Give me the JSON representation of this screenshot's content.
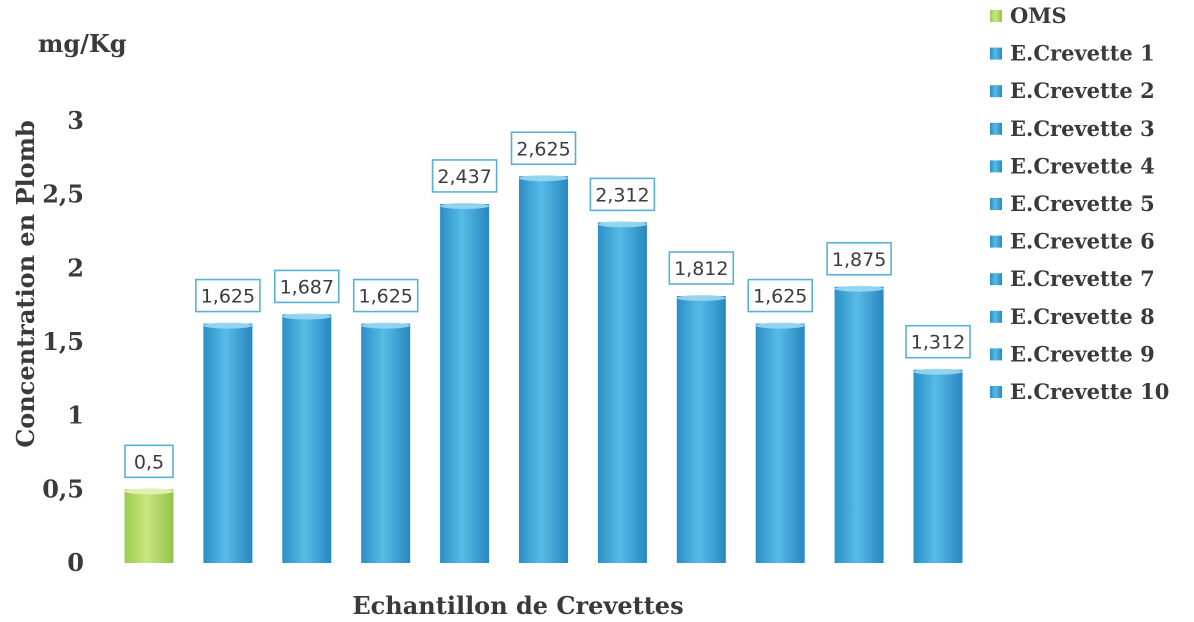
{
  "chart_data": {
    "type": "bar",
    "unit_label": "mg/Kg",
    "xlabel": "Echantillon de Crevettes",
    "ylabel": "Concentration en Plomb",
    "ylim": [
      0,
      3
    ],
    "yticks": [
      "0",
      "0,5",
      "1",
      "1,5",
      "2",
      "2,5",
      "3"
    ],
    "ytick_values": [
      0,
      0.5,
      1,
      1.5,
      2,
      2.5,
      3
    ],
    "grid": false,
    "legend_position": "right",
    "series": [
      {
        "name": "OMS",
        "value": 0.5,
        "label": "0,5",
        "color": "#b6dc6a"
      },
      {
        "name": "E.Crevette 1",
        "value": 1.625,
        "label": "1,625",
        "color": "#3fa6d8"
      },
      {
        "name": "E.Crevette 2",
        "value": 1.687,
        "label": "1,687",
        "color": "#3fa6d8"
      },
      {
        "name": "E.Crevette 3",
        "value": 1.625,
        "label": "1,625",
        "color": "#3fa6d8"
      },
      {
        "name": "E.Crevette 4",
        "value": 2.437,
        "label": "2,437",
        "color": "#3fa6d8"
      },
      {
        "name": "E.Crevette 5",
        "value": 2.625,
        "label": "2,625",
        "color": "#3fa6d8"
      },
      {
        "name": "E.Crevette 6",
        "value": 2.312,
        "label": "2,312",
        "color": "#3fa6d8"
      },
      {
        "name": "E.Crevette 7",
        "value": 1.812,
        "label": "1,812",
        "color": "#3fa6d8"
      },
      {
        "name": "E.Crevette 8",
        "value": 1.625,
        "label": "1,625",
        "color": "#3fa6d8"
      },
      {
        "name": "E.Crevette 9",
        "value": 1.875,
        "label": "1,875",
        "color": "#3fa6d8"
      },
      {
        "name": "E.Crevette 10",
        "value": 1.312,
        "label": "1,312",
        "color": "#3fa6d8"
      }
    ]
  }
}
